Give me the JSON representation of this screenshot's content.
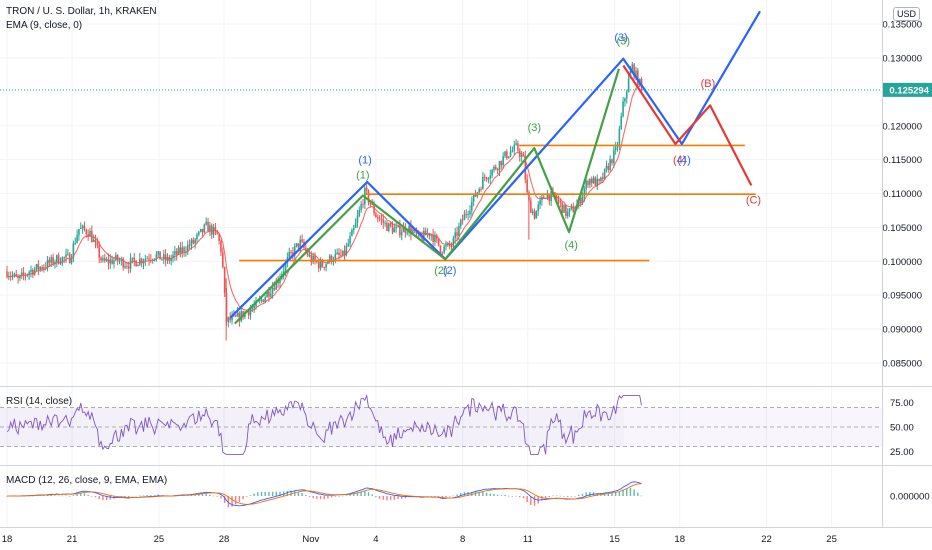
{
  "header": {
    "title": "TRON / U. S. Dollar, 1h, KRAKEN",
    "ema_label": "EMA (9, close, 0)",
    "currency": "USD"
  },
  "colors": {
    "up": "#26a69a",
    "down": "#ef5350",
    "blue": "#2962ff",
    "green": "#43a047",
    "red": "#e53935",
    "orange": "#f57c00",
    "rsi": "#7e57c2",
    "last": "#26a69a"
  },
  "chart_data": {
    "type": "line",
    "symbol": "TRON / U. S. Dollar",
    "y_ticks": [
      "0.135000",
      "0.130000",
      "0.125000",
      "0.120000",
      "0.115000",
      "0.110000",
      "0.105000",
      "0.100000",
      "0.095000",
      "0.090000",
      "0.085000"
    ],
    "y_tick_values": [
      0.135,
      0.13,
      0.125,
      0.12,
      0.115,
      0.11,
      0.105,
      0.1,
      0.095,
      0.09,
      0.085
    ],
    "last_price": "0.125294",
    "last_price_value": 0.125294,
    "x_ticks": [
      {
        "label": "18",
        "day": 0
      },
      {
        "label": "21",
        "day": 3
      },
      {
        "label": "25",
        "day": 7
      },
      {
        "label": "28",
        "day": 10
      },
      {
        "label": "Nov",
        "day": 14
      },
      {
        "label": "4",
        "day": 17
      },
      {
        "label": "8",
        "day": 21
      },
      {
        "label": "11",
        "day": 24
      },
      {
        "label": "15",
        "day": 28
      },
      {
        "label": "18",
        "day": 31
      },
      {
        "label": "22",
        "day": 35
      },
      {
        "label": "25",
        "day": 38
      }
    ],
    "price_path": [
      [
        0,
        0.0985
      ],
      [
        0.5,
        0.0972
      ],
      [
        1,
        0.0985
      ],
      [
        1.6,
        0.0992
      ],
      [
        2.3,
        0.1003
      ],
      [
        2.9,
        0.1005
      ],
      [
        3.3,
        0.1048
      ],
      [
        3.8,
        0.1043
      ],
      [
        4.4,
        0.0998
      ],
      [
        5,
        0.1002
      ],
      [
        5.6,
        0.0996
      ],
      [
        6.2,
        0.1003
      ],
      [
        6.8,
        0.1009
      ],
      [
        7.4,
        0.1001
      ],
      [
        8,
        0.1015
      ],
      [
        8.6,
        0.1028
      ],
      [
        9.2,
        0.1052
      ],
      [
        9.7,
        0.1038
      ],
      [
        9.9,
        0.1012
      ],
      [
        10.1,
        0.0912
      ],
      [
        10.5,
        0.0914
      ],
      [
        11,
        0.0925
      ],
      [
        11.5,
        0.0934
      ],
      [
        12,
        0.0953
      ],
      [
        12.5,
        0.0973
      ],
      [
        13,
        0.1006
      ],
      [
        13.5,
        0.1028
      ],
      [
        14,
        0.1003
      ],
      [
        14.5,
        0.0993
      ],
      [
        15,
        0.1006
      ],
      [
        15.5,
        0.1008
      ],
      [
        16,
        0.1047
      ],
      [
        16.5,
        0.1102
      ],
      [
        17,
        0.1068
      ],
      [
        17.5,
        0.1052
      ],
      [
        18,
        0.1045
      ],
      [
        18.5,
        0.1049
      ],
      [
        19,
        0.1033
      ],
      [
        19.5,
        0.1043
      ],
      [
        20,
        0.1018
      ],
      [
        20.5,
        0.1023
      ],
      [
        21,
        0.1062
      ],
      [
        21.5,
        0.1092
      ],
      [
        22,
        0.1124
      ],
      [
        22.5,
        0.1138
      ],
      [
        23,
        0.1157
      ],
      [
        23.5,
        0.1168
      ],
      [
        23.8,
        0.1149
      ],
      [
        24,
        0.1089
      ],
      [
        24.3,
        0.1068
      ],
      [
        24.8,
        0.1099
      ],
      [
        25.3,
        0.1093
      ],
      [
        25.8,
        0.1069
      ],
      [
        26.3,
        0.1083
      ],
      [
        26.8,
        0.1122
      ],
      [
        27.3,
        0.1113
      ],
      [
        27.8,
        0.1147
      ],
      [
        28.1,
        0.1165
      ],
      [
        28.4,
        0.1232
      ],
      [
        28.8,
        0.1288
      ],
      [
        29.1,
        0.1265
      ],
      [
        29.3,
        0.1253
      ]
    ],
    "rsi": {
      "label": "RSI (14, close)",
      "ticks": [
        "75.00",
        "50.00",
        "25.00"
      ],
      "tick_values": [
        75,
        50,
        25
      ],
      "band": [
        30,
        70
      ]
    },
    "macd": {
      "label": "MACD (12, 26, close, 9, EMA, EMA)",
      "ticks": [
        "0.000000"
      ]
    },
    "wave_lines": [
      {
        "name": "blue-primary",
        "color": "#2962ff",
        "points": [
          [
            10.3,
            0.0917
          ],
          [
            16.6,
            0.1117
          ],
          [
            20.2,
            0.1003
          ],
          [
            28.4,
            0.1299
          ],
          [
            31.1,
            0.1173
          ],
          [
            34.7,
            0.1369
          ]
        ]
      },
      {
        "name": "green-sub",
        "color": "#43a047",
        "points": [
          [
            10.5,
            0.0908
          ],
          [
            16.4,
            0.1097
          ],
          [
            20.2,
            0.1003
          ],
          [
            24.3,
            0.1167
          ],
          [
            25.9,
            0.1043
          ],
          [
            28.2,
            0.1284
          ]
        ]
      },
      {
        "name": "red-correction",
        "color": "#e53935",
        "points": [
          [
            28.4,
            0.1289
          ],
          [
            30.8,
            0.1173
          ],
          [
            32.4,
            0.123
          ],
          [
            34.3,
            0.1112
          ]
        ]
      }
    ],
    "h_lines": [
      {
        "y": 0.1001,
        "x0": 10.7,
        "x1": 29.6,
        "color": "#f57c00"
      },
      {
        "y": 0.1099,
        "x0": 16.5,
        "x1": 34.5,
        "color": "#f57c00"
      },
      {
        "y": 0.1171,
        "x0": 23.6,
        "x1": 34.0,
        "color": "#f57c00"
      }
    ],
    "wave_labels": [
      {
        "text": "(1)",
        "x": 16.5,
        "y": 0.1144,
        "color": "#2962ff"
      },
      {
        "text": "(1)",
        "x": 16.4,
        "y": 0.1122,
        "color": "#43a047"
      },
      {
        "text": "(2)",
        "x": 20.0,
        "y": 0.0981,
        "color": "#43a047"
      },
      {
        "text": "(2)",
        "x": 20.4,
        "y": 0.0981,
        "color": "#2962ff"
      },
      {
        "text": "(3)",
        "x": 24.3,
        "y": 0.1192,
        "color": "#43a047"
      },
      {
        "text": "(3)",
        "x": 28.3,
        "y": 0.1325,
        "color": "#2962ff"
      },
      {
        "text": "(3)",
        "x": 28.4,
        "y": 0.132,
        "color": "#43a047"
      },
      {
        "text": "(4)",
        "x": 26.0,
        "y": 0.1019,
        "color": "#43a047"
      },
      {
        "text": "(4)",
        "x": 31.0,
        "y": 0.1144,
        "color": "#e53935"
      },
      {
        "text": "(4)",
        "x": 31.2,
        "y": 0.1144,
        "color": "#2962ff"
      },
      {
        "text": "(B)",
        "x": 32.3,
        "y": 0.1257,
        "color": "#e53935"
      },
      {
        "text": "(C)",
        "x": 34.4,
        "y": 0.1085,
        "color": "#e53935"
      }
    ]
  }
}
